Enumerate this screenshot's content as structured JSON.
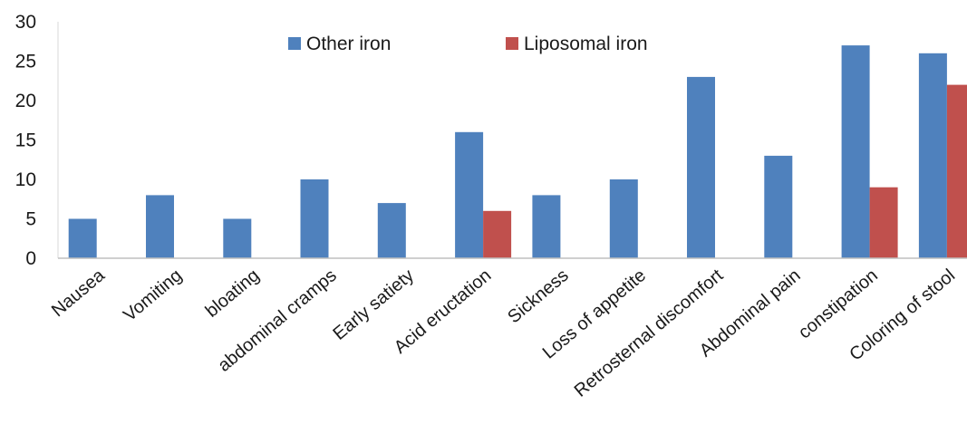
{
  "chart_data": {
    "type": "bar",
    "title": "",
    "xlabel": "",
    "ylabel": "",
    "ylim": [
      0,
      30
    ],
    "yticks": [
      0,
      5,
      10,
      15,
      20,
      25,
      30
    ],
    "grid": false,
    "legend_position": "top-center",
    "categories": [
      "Nausea",
      "Vomiting",
      "bloating",
      "abdominal cramps",
      "Early satiety",
      "Acid eructation",
      "Sickness",
      "Loss of appetite",
      "Retrosternal discomfort",
      "Abdominal pain",
      "constipation",
      "Coloring of stool"
    ],
    "series": [
      {
        "name": "Other iron",
        "color": "#4f81bd",
        "values": [
          5,
          8,
          5,
          10,
          7,
          16,
          8,
          10,
          23,
          13,
          27,
          26
        ]
      },
      {
        "name": "Liposomal iron",
        "color": "#c0504d",
        "values": [
          0,
          0,
          0,
          0,
          0,
          6,
          0,
          0,
          0,
          0,
          9,
          22
        ]
      }
    ]
  }
}
